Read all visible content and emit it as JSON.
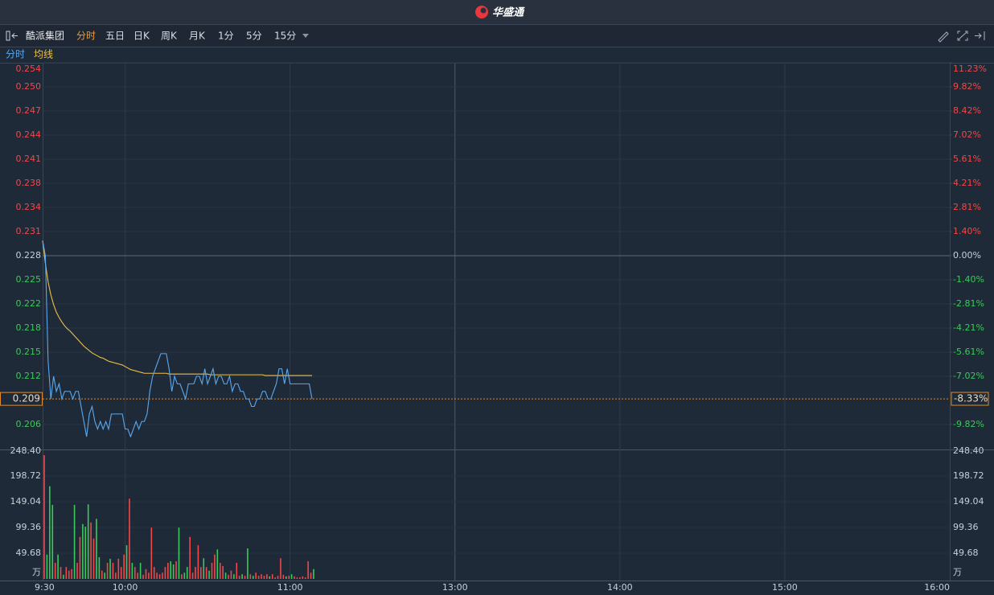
{
  "header": {
    "logo": "华盛通"
  },
  "toolbar": {
    "stock": "酷派集团",
    "tabs": [
      "分时",
      "五日",
      "日K",
      "周K",
      "月K",
      "1分",
      "5分",
      "15分"
    ],
    "active": 0
  },
  "chart_data": [
    {
      "type": "line",
      "x": [
        0,
        1,
        2,
        3,
        4,
        5,
        6,
        7,
        8,
        9,
        10,
        11,
        12,
        13,
        14,
        15,
        16,
        17,
        18,
        19,
        20,
        21,
        22,
        23,
        24,
        25,
        26,
        27,
        28,
        29,
        30,
        31,
        32,
        33,
        34,
        35,
        36,
        37,
        38,
        39,
        40,
        41,
        42,
        43,
        44,
        45,
        46,
        47,
        48,
        49,
        50,
        51,
        52,
        53,
        54,
        55,
        56,
        57,
        58,
        59,
        60,
        61,
        62,
        63,
        64,
        65,
        66,
        67,
        68,
        69,
        70,
        71,
        72,
        73,
        74,
        75,
        76,
        77,
        78,
        79,
        80,
        81,
        82,
        83,
        84,
        85,
        86,
        87,
        88,
        89,
        90,
        91,
        92,
        93,
        94,
        95,
        96,
        97,
        98
      ],
      "series": [
        {
          "name": "分时",
          "color": "#5aa8f0",
          "values": [
            0.23,
            0.228,
            0.214,
            0.209,
            0.212,
            0.21,
            0.211,
            0.209,
            0.21,
            0.21,
            0.21,
            0.209,
            0.21,
            0.21,
            0.208,
            0.206,
            0.204,
            0.207,
            0.208,
            0.206,
            0.205,
            0.206,
            0.205,
            0.206,
            0.205,
            0.207,
            0.207,
            0.207,
            0.207,
            0.207,
            0.205,
            0.205,
            0.204,
            0.205,
            0.206,
            0.205,
            0.206,
            0.206,
            0.207,
            0.21,
            0.212,
            0.213,
            0.214,
            0.215,
            0.215,
            0.215,
            0.213,
            0.21,
            0.212,
            0.211,
            0.211,
            0.21,
            0.209,
            0.211,
            0.211,
            0.211,
            0.212,
            0.212,
            0.211,
            0.213,
            0.211,
            0.212,
            0.213,
            0.211,
            0.212,
            0.212,
            0.211,
            0.211,
            0.212,
            0.21,
            0.211,
            0.211,
            0.21,
            0.21,
            0.209,
            0.209,
            0.208,
            0.208,
            0.209,
            0.209,
            0.21,
            0.21,
            0.209,
            0.209,
            0.21,
            0.211,
            0.213,
            0.213,
            0.211,
            0.213,
            0.211,
            0.211,
            0.211,
            0.211,
            0.211,
            0.211,
            0.211,
            0.211,
            0.209
          ]
        },
        {
          "name": "均线",
          "color": "#f0c040",
          "values": [
            0.23,
            0.227,
            0.2245,
            0.2228,
            0.2215,
            0.2205,
            0.2198,
            0.2192,
            0.2187,
            0.2183,
            0.218,
            0.2176,
            0.2172,
            0.2168,
            0.2164,
            0.216,
            0.2157,
            0.2154,
            0.2151,
            0.2149,
            0.2147,
            0.2145,
            0.2144,
            0.2142,
            0.214,
            0.2139,
            0.2138,
            0.2137,
            0.2136,
            0.2135,
            0.2133,
            0.2131,
            0.2129,
            0.2128,
            0.2127,
            0.2126,
            0.2125,
            0.2124,
            0.2124,
            0.2124,
            0.2124,
            0.2124,
            0.2124,
            0.2124,
            0.2124,
            0.2124,
            0.2123,
            0.2123,
            0.2123,
            0.2123,
            0.2123,
            0.2123,
            0.2123,
            0.2123,
            0.2123,
            0.2123,
            0.2123,
            0.2123,
            0.2123,
            0.2123,
            0.2123,
            0.2122,
            0.2122,
            0.2122,
            0.2122,
            0.2122,
            0.2122,
            0.2122,
            0.2122,
            0.2122,
            0.2122,
            0.2122,
            0.2122,
            0.2122,
            0.2122,
            0.2122,
            0.2122,
            0.2122,
            0.2122,
            0.2122,
            0.2122,
            0.2121,
            0.2121,
            0.2121,
            0.2121,
            0.2121,
            0.2121,
            0.2121,
            0.2121,
            0.2121,
            0.2121,
            0.2121,
            0.2121,
            0.2121,
            0.2121,
            0.2121,
            0.2121,
            0.2121,
            0.2121
          ]
        }
      ],
      "xlim": [
        0,
        330
      ],
      "xticks": [
        {
          "value": 0,
          "label": "9:30"
        },
        {
          "value": 30,
          "label": "10:00"
        },
        {
          "value": 90,
          "label": "11:00"
        },
        {
          "value": 150,
          "label": "13:00"
        },
        {
          "value": 210,
          "label": "14:00"
        },
        {
          "value": 270,
          "label": "15:00"
        },
        {
          "value": 330,
          "label": "16:00"
        }
      ],
      "ylim": [
        0.2024,
        0.2536
      ],
      "yticks": [
        {
          "value": 0.2536,
          "label": "0.254"
        },
        {
          "value": 0.2504,
          "label": "0.250"
        },
        {
          "value": 0.2472,
          "label": "0.247"
        },
        0.244,
        {
          "value": 0.2408,
          "label": "0.241"
        },
        {
          "value": 0.2376,
          "label": "0.238"
        },
        {
          "value": 0.2344,
          "label": "0.234"
        },
        {
          "value": 0.2312,
          "label": "0.231"
        },
        0.228,
        {
          "value": 0.2248,
          "label": "0.225"
        },
        {
          "value": 0.2216,
          "label": "0.222"
        },
        {
          "value": 0.2184,
          "label": "0.218"
        },
        {
          "value": 0.2152,
          "label": "0.215"
        },
        0.212,
        {
          "value": 0.2056,
          "label": "0.206"
        }
      ],
      "y2lim": [
        -11.23,
        11.23
      ],
      "y2ticks": [
        {
          "value": 11.23,
          "label": "11.23%"
        },
        {
          "value": 9.82,
          "label": "9.82%"
        },
        {
          "value": 8.42,
          "label": "8.42%"
        },
        {
          "value": 7.02,
          "label": "7.02%"
        },
        {
          "value": 5.61,
          "label": "5.61%"
        },
        {
          "value": 4.21,
          "label": "4.21%"
        },
        {
          "value": 2.81,
          "label": "2.81%"
        },
        {
          "value": 1.4,
          "label": "1.40%"
        },
        {
          "value": 0,
          "label": "0.00%"
        },
        {
          "value": -1.4,
          "label": "-1.40%"
        },
        {
          "value": -2.81,
          "label": "-2.81%"
        },
        {
          "value": -4.21,
          "label": "-4.21%"
        },
        {
          "value": -5.61,
          "label": "-5.61%"
        },
        {
          "value": -7.02,
          "label": "-7.02%"
        },
        {
          "value": -9.82,
          "label": "-9.82%"
        }
      ],
      "last_price": 0.209,
      "last_change": {
        "value": -8.33,
        "label": "-8.33%"
      },
      "up_color": "#f04848",
      "down_color": "#3cc85a",
      "grid": true
    },
    {
      "type": "bar",
      "values": [
        239,
        47,
        179,
        143,
        31,
        47,
        23,
        8,
        23,
        16,
        19,
        143,
        31,
        81,
        106,
        101,
        144,
        109,
        78,
        116,
        42,
        16,
        12,
        31,
        39,
        31,
        12,
        39,
        23,
        47,
        65,
        155,
        31,
        23,
        12,
        31,
        8,
        19,
        12,
        99,
        23,
        12,
        9,
        12,
        23,
        31,
        34,
        28,
        34,
        99,
        9,
        12,
        23,
        81,
        12,
        23,
        65,
        23,
        40,
        23,
        16,
        31,
        47,
        57,
        31,
        25,
        12,
        8,
        16,
        9,
        31,
        6,
        9,
        6,
        59,
        9,
        6,
        12,
        6,
        9,
        6,
        9,
        5,
        9,
        3,
        6,
        40,
        8,
        5,
        6,
        9,
        5,
        3,
        3,
        5,
        3,
        34,
        12,
        19
      ],
      "ylim": [
        0,
        248.4
      ],
      "yticks": [
        {
          "value": 248.4,
          "label": "248.40"
        },
        198.72,
        149.04,
        99.36,
        49.68
      ],
      "unit": "万"
    }
  ]
}
